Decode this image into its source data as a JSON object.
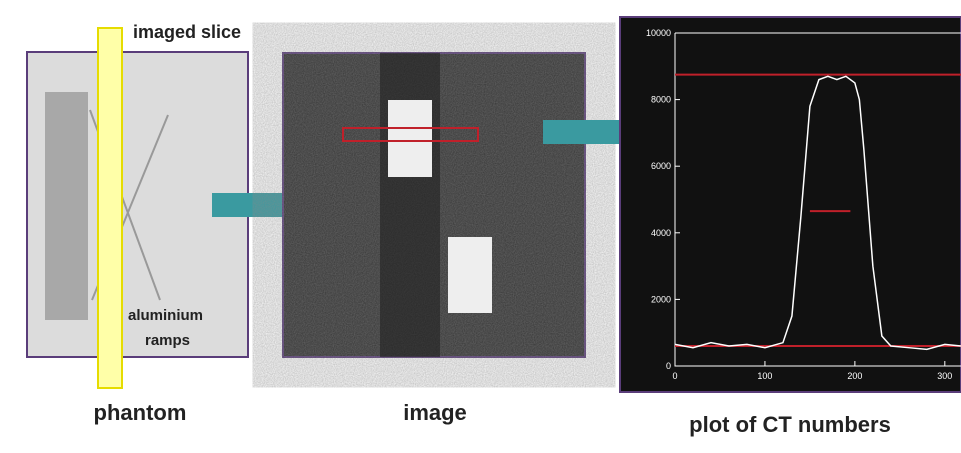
{
  "labels": {
    "slice": "imaged slice",
    "ramps_1": "aluminium",
    "ramps_2": "ramps",
    "phantom": "phantom",
    "image": "image",
    "plot": "plot of CT numbers"
  },
  "plot": {
    "xlim": [
      0,
      318
    ],
    "ylim": [
      0,
      10000
    ],
    "xticks": [
      0,
      100,
      200,
      300
    ],
    "yticks": [
      0,
      2000,
      4000,
      6000,
      8000,
      10000
    ],
    "profile": {
      "x": [
        0,
        20,
        40,
        60,
        80,
        100,
        120,
        130,
        140,
        150,
        160,
        170,
        180,
        190,
        200,
        205,
        210,
        220,
        230,
        240,
        260,
        280,
        300,
        318
      ],
      "values": [
        650,
        550,
        700,
        600,
        650,
        550,
        700,
        1500,
        4500,
        7800,
        8600,
        8700,
        8600,
        8700,
        8500,
        8000,
        6500,
        3000,
        900,
        600,
        550,
        500,
        650,
        600
      ]
    },
    "reference_lines": [
      {
        "value": 8750,
        "x": [
          0,
          318
        ]
      },
      {
        "value": 4650,
        "x": [
          150,
          195
        ]
      },
      {
        "value": 600,
        "x": [
          0,
          318
        ]
      }
    ]
  }
}
